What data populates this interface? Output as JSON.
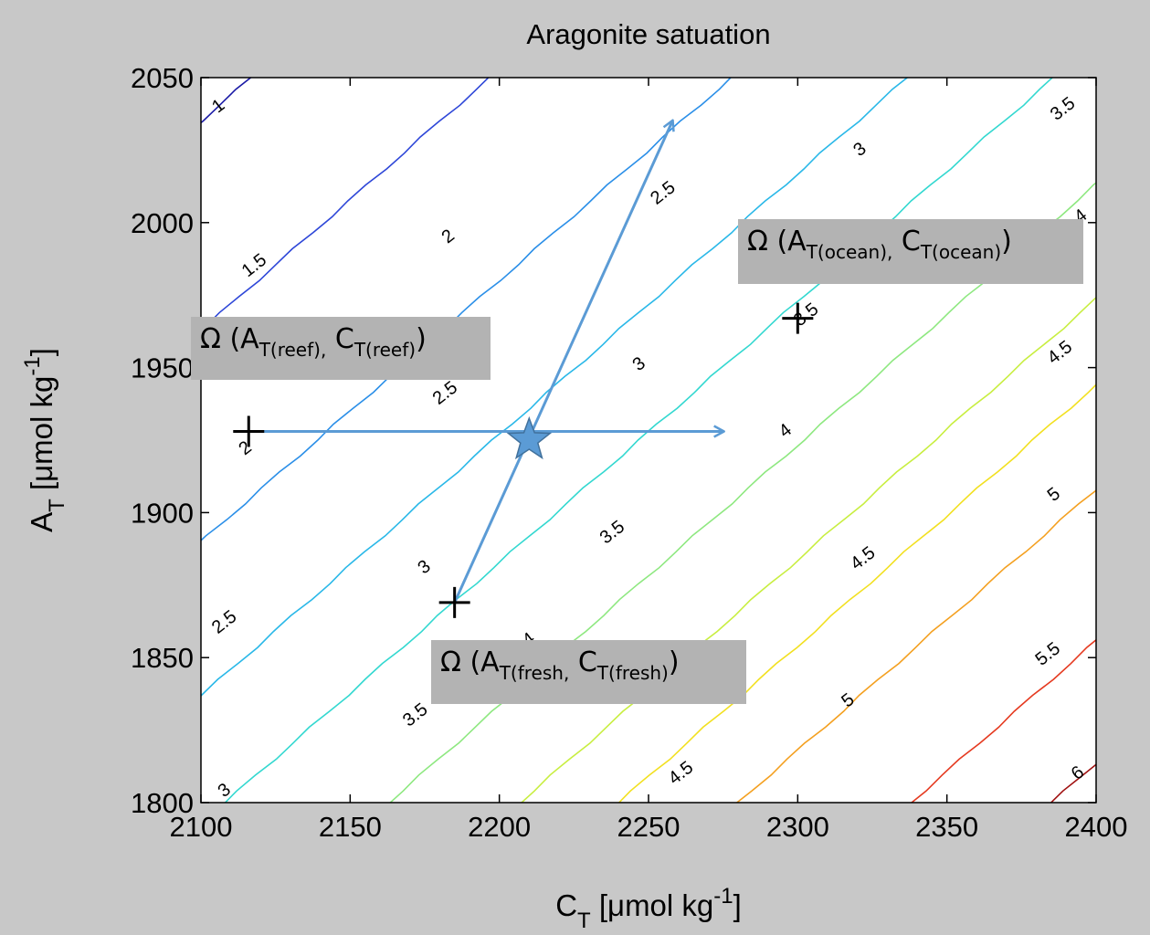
{
  "chart_data": {
    "type": "contour",
    "title": "Aragonite satuation",
    "xlabel": {
      "main": "C",
      "sub": "T",
      "unit_pre": " [μmol kg",
      "sup": "-1",
      "unit_post": "]"
    },
    "ylabel": {
      "main": "A",
      "sub": "T",
      "unit_pre": " [μmol kg",
      "sup": "-1",
      "unit_post": "]"
    },
    "xlim": [
      2100,
      2400
    ],
    "ylim": [
      1800,
      2050
    ],
    "xticks": [
      2100,
      2150,
      2200,
      2250,
      2300,
      2350,
      2400
    ],
    "yticks": [
      1800,
      1850,
      1900,
      1950,
      2000,
      2050
    ],
    "contour_slope": 0.9,
    "contours": [
      {
        "level": "1",
        "x_at_1800": 1839,
        "color": "#1a1aa6"
      },
      {
        "level": "1.5",
        "x_at_1800": 1919,
        "color": "#2e47d8"
      },
      {
        "level": "2",
        "x_at_1800": 2000,
        "color": "#2b8fe8"
      },
      {
        "level": "2.5",
        "x_at_1800": 2059,
        "color": "#2ab8e8"
      },
      {
        "level": "3",
        "x_at_1800": 2108,
        "color": "#33d8d0"
      },
      {
        "level": "3.5",
        "x_at_1800": 2163,
        "color": "#8ee880"
      },
      {
        "level": "4",
        "x_at_1800": 2207,
        "color": "#c8ee40"
      },
      {
        "level": "4.5",
        "x_at_1800": 2240,
        "color": "#f2e020"
      },
      {
        "level": "5",
        "x_at_1800": 2280,
        "color": "#f4a020"
      },
      {
        "level": "5.5",
        "x_at_1800": 2338,
        "color": "#e53a20"
      },
      {
        "level": "6",
        "x_at_1800": 2385,
        "color": "#a01010"
      }
    ],
    "contour_labels": [
      {
        "text": "1",
        "x": 2106,
        "y": 2040,
        "angle": -38
      },
      {
        "text": "1.5",
        "x": 2118,
        "y": 1985,
        "angle": -38
      },
      {
        "text": "2",
        "x": 2183,
        "y": 1995,
        "angle": -38
      },
      {
        "text": "2",
        "x": 2115,
        "y": 1922,
        "angle": -38
      },
      {
        "text": "2.5",
        "x": 2255,
        "y": 2010,
        "angle": -38
      },
      {
        "text": "2.5",
        "x": 2182,
        "y": 1941,
        "angle": -38
      },
      {
        "text": "2.5",
        "x": 2108,
        "y": 1862,
        "angle": -38
      },
      {
        "text": "3",
        "x": 2321,
        "y": 2025,
        "angle": -38
      },
      {
        "text": "3",
        "x": 2247,
        "y": 1951,
        "angle": -38
      },
      {
        "text": "3",
        "x": 2175,
        "y": 1881,
        "angle": -38
      },
      {
        "text": "3",
        "x": 2108,
        "y": 1804,
        "angle": -38
      },
      {
        "text": "3.5",
        "x": 2389,
        "y": 2039,
        "angle": -38
      },
      {
        "text": "3.5",
        "x": 2303,
        "y": 1968,
        "angle": -38
      },
      {
        "text": "3.5",
        "x": 2238,
        "y": 1893,
        "angle": -38
      },
      {
        "text": "3.5",
        "x": 2172,
        "y": 1830,
        "angle": -38
      },
      {
        "text": "4",
        "x": 2395,
        "y": 2002,
        "angle": -38
      },
      {
        "text": "4",
        "x": 2296,
        "y": 1928,
        "angle": -38
      },
      {
        "text": "4",
        "x": 2210,
        "y": 1856,
        "angle": -38
      },
      {
        "text": "4.5",
        "x": 2388,
        "y": 1955,
        "angle": -38
      },
      {
        "text": "4.5",
        "x": 2322,
        "y": 1884,
        "angle": -38
      },
      {
        "text": "4.5",
        "x": 2261,
        "y": 1810,
        "angle": -38
      },
      {
        "text": "5",
        "x": 2386,
        "y": 1906,
        "angle": -38
      },
      {
        "text": "5",
        "x": 2317,
        "y": 1835,
        "angle": -38
      },
      {
        "text": "5.5",
        "x": 2384,
        "y": 1851,
        "angle": -38
      },
      {
        "text": "6",
        "x": 2394,
        "y": 1810,
        "angle": -38
      }
    ],
    "points": [
      {
        "name": "reef",
        "x": 2116,
        "y": 1928
      },
      {
        "name": "fresh",
        "x": 2185,
        "y": 1869
      },
      {
        "name": "ocean",
        "x": 2300,
        "y": 1967
      }
    ],
    "star": {
      "x": 2210,
      "y": 1925
    },
    "arrows": [
      {
        "from": [
          2116,
          1928
        ],
        "to": [
          2275,
          1928
        ]
      },
      {
        "from": [
          2185,
          1869
        ],
        "to": [
          2258,
          2035
        ]
      }
    ],
    "colors": {
      "arrow": "#5b9bd5",
      "star": "#5b9bd5",
      "star_edge": "#41719c",
      "figure_bg": "#c8c8c8",
      "plot_bg": "#ffffff"
    }
  },
  "annotations": {
    "reef": {
      "omega": "Ω",
      "open": " (A",
      "sub1": "T(reef),",
      "mid": " C",
      "sub2": "T(reef)",
      "close": ")"
    },
    "ocean": {
      "omega": "Ω",
      "open": " (A",
      "sub1": "T(ocean),",
      "mid": " C",
      "sub2": "T(ocean)",
      "close": ")"
    },
    "fresh": {
      "omega": "Ω",
      "open": " (A",
      "sub1": "T(fresh,",
      "mid": " C",
      "sub2": "T(fresh)",
      "close": ")"
    }
  }
}
